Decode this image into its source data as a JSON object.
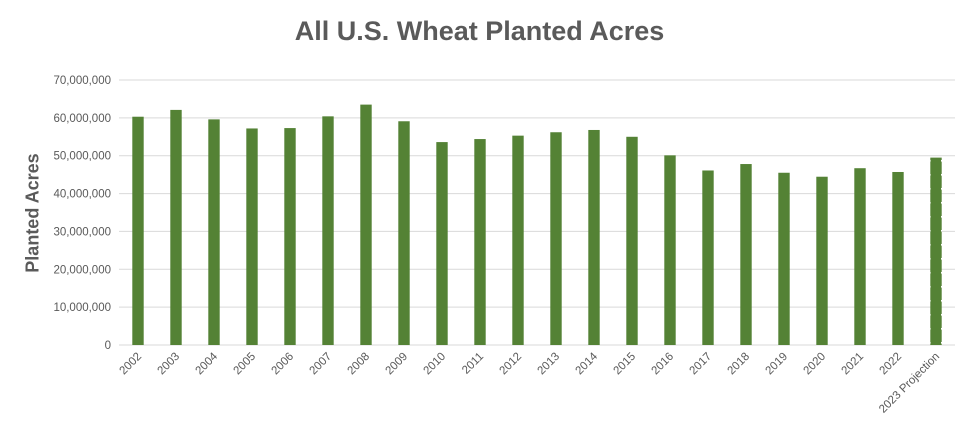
{
  "chart_data": {
    "type": "bar",
    "title": "All U.S. Wheat Planted Acres",
    "xlabel": "",
    "ylabel": "Planted Acres",
    "categories": [
      "2002",
      "2003",
      "2004",
      "2005",
      "2006",
      "2007",
      "2008",
      "2009",
      "2010",
      "2011",
      "2012",
      "2013",
      "2014",
      "2015",
      "2016",
      "2017",
      "2018",
      "2019",
      "2020",
      "2021",
      "2022",
      "2023 Projection"
    ],
    "values": [
      60300000,
      62100000,
      59600000,
      57200000,
      57300000,
      60400000,
      63500000,
      59100000,
      53600000,
      54400000,
      55300000,
      56200000,
      56800000,
      54999000,
      50100000,
      46100000,
      47800000,
      45500000,
      44450000,
      46700000,
      45700000,
      49500000
    ],
    "ylim": [
      0,
      70000000
    ],
    "yticks": [
      0,
      10000000,
      20000000,
      30000000,
      40000000,
      50000000,
      60000000,
      70000000
    ],
    "ytick_labels": [
      "0",
      "10,000,000",
      "20,000,000",
      "30,000,000",
      "40,000,000",
      "50,000,000",
      "60,000,000",
      "70,000,000"
    ],
    "grid": true,
    "legend": "none",
    "colors": {
      "bar": "#548235",
      "gridline": "#d9d9d9",
      "projection_pattern": "#ffffff"
    },
    "projection_index": 21
  }
}
